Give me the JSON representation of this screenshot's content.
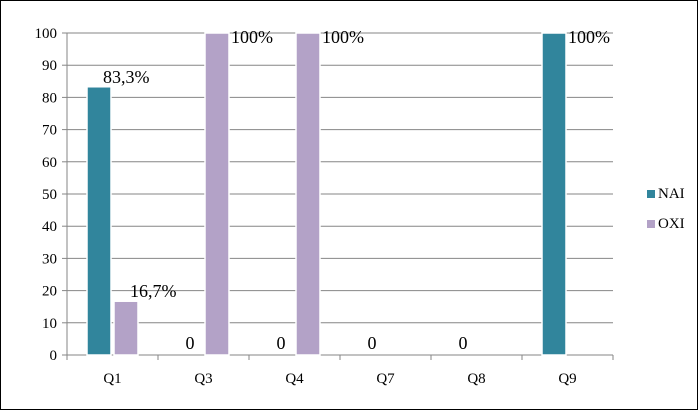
{
  "chart_data": {
    "type": "bar",
    "categories": [
      "Q1",
      "Q3",
      "Q4",
      "Q7",
      "Q8",
      "Q9"
    ],
    "series": [
      {
        "name": "NAI",
        "color": "#31859c",
        "values": [
          83.3,
          0,
          0,
          0,
          0,
          100
        ],
        "labels": [
          "83,3%",
          "0",
          "0",
          "0",
          "0",
          "100%"
        ]
      },
      {
        "name": "OXI",
        "color": "#b3a2c7",
        "values": [
          16.7,
          100,
          100,
          0,
          0,
          0
        ],
        "labels": [
          "16,7%",
          "100%",
          "100%",
          "",
          "",
          ""
        ]
      }
    ],
    "ylim": [
      0,
      100
    ],
    "yticks": [
      0,
      10,
      20,
      30,
      40,
      50,
      60,
      70,
      80,
      90,
      100
    ],
    "grid": true,
    "legend": "right"
  }
}
